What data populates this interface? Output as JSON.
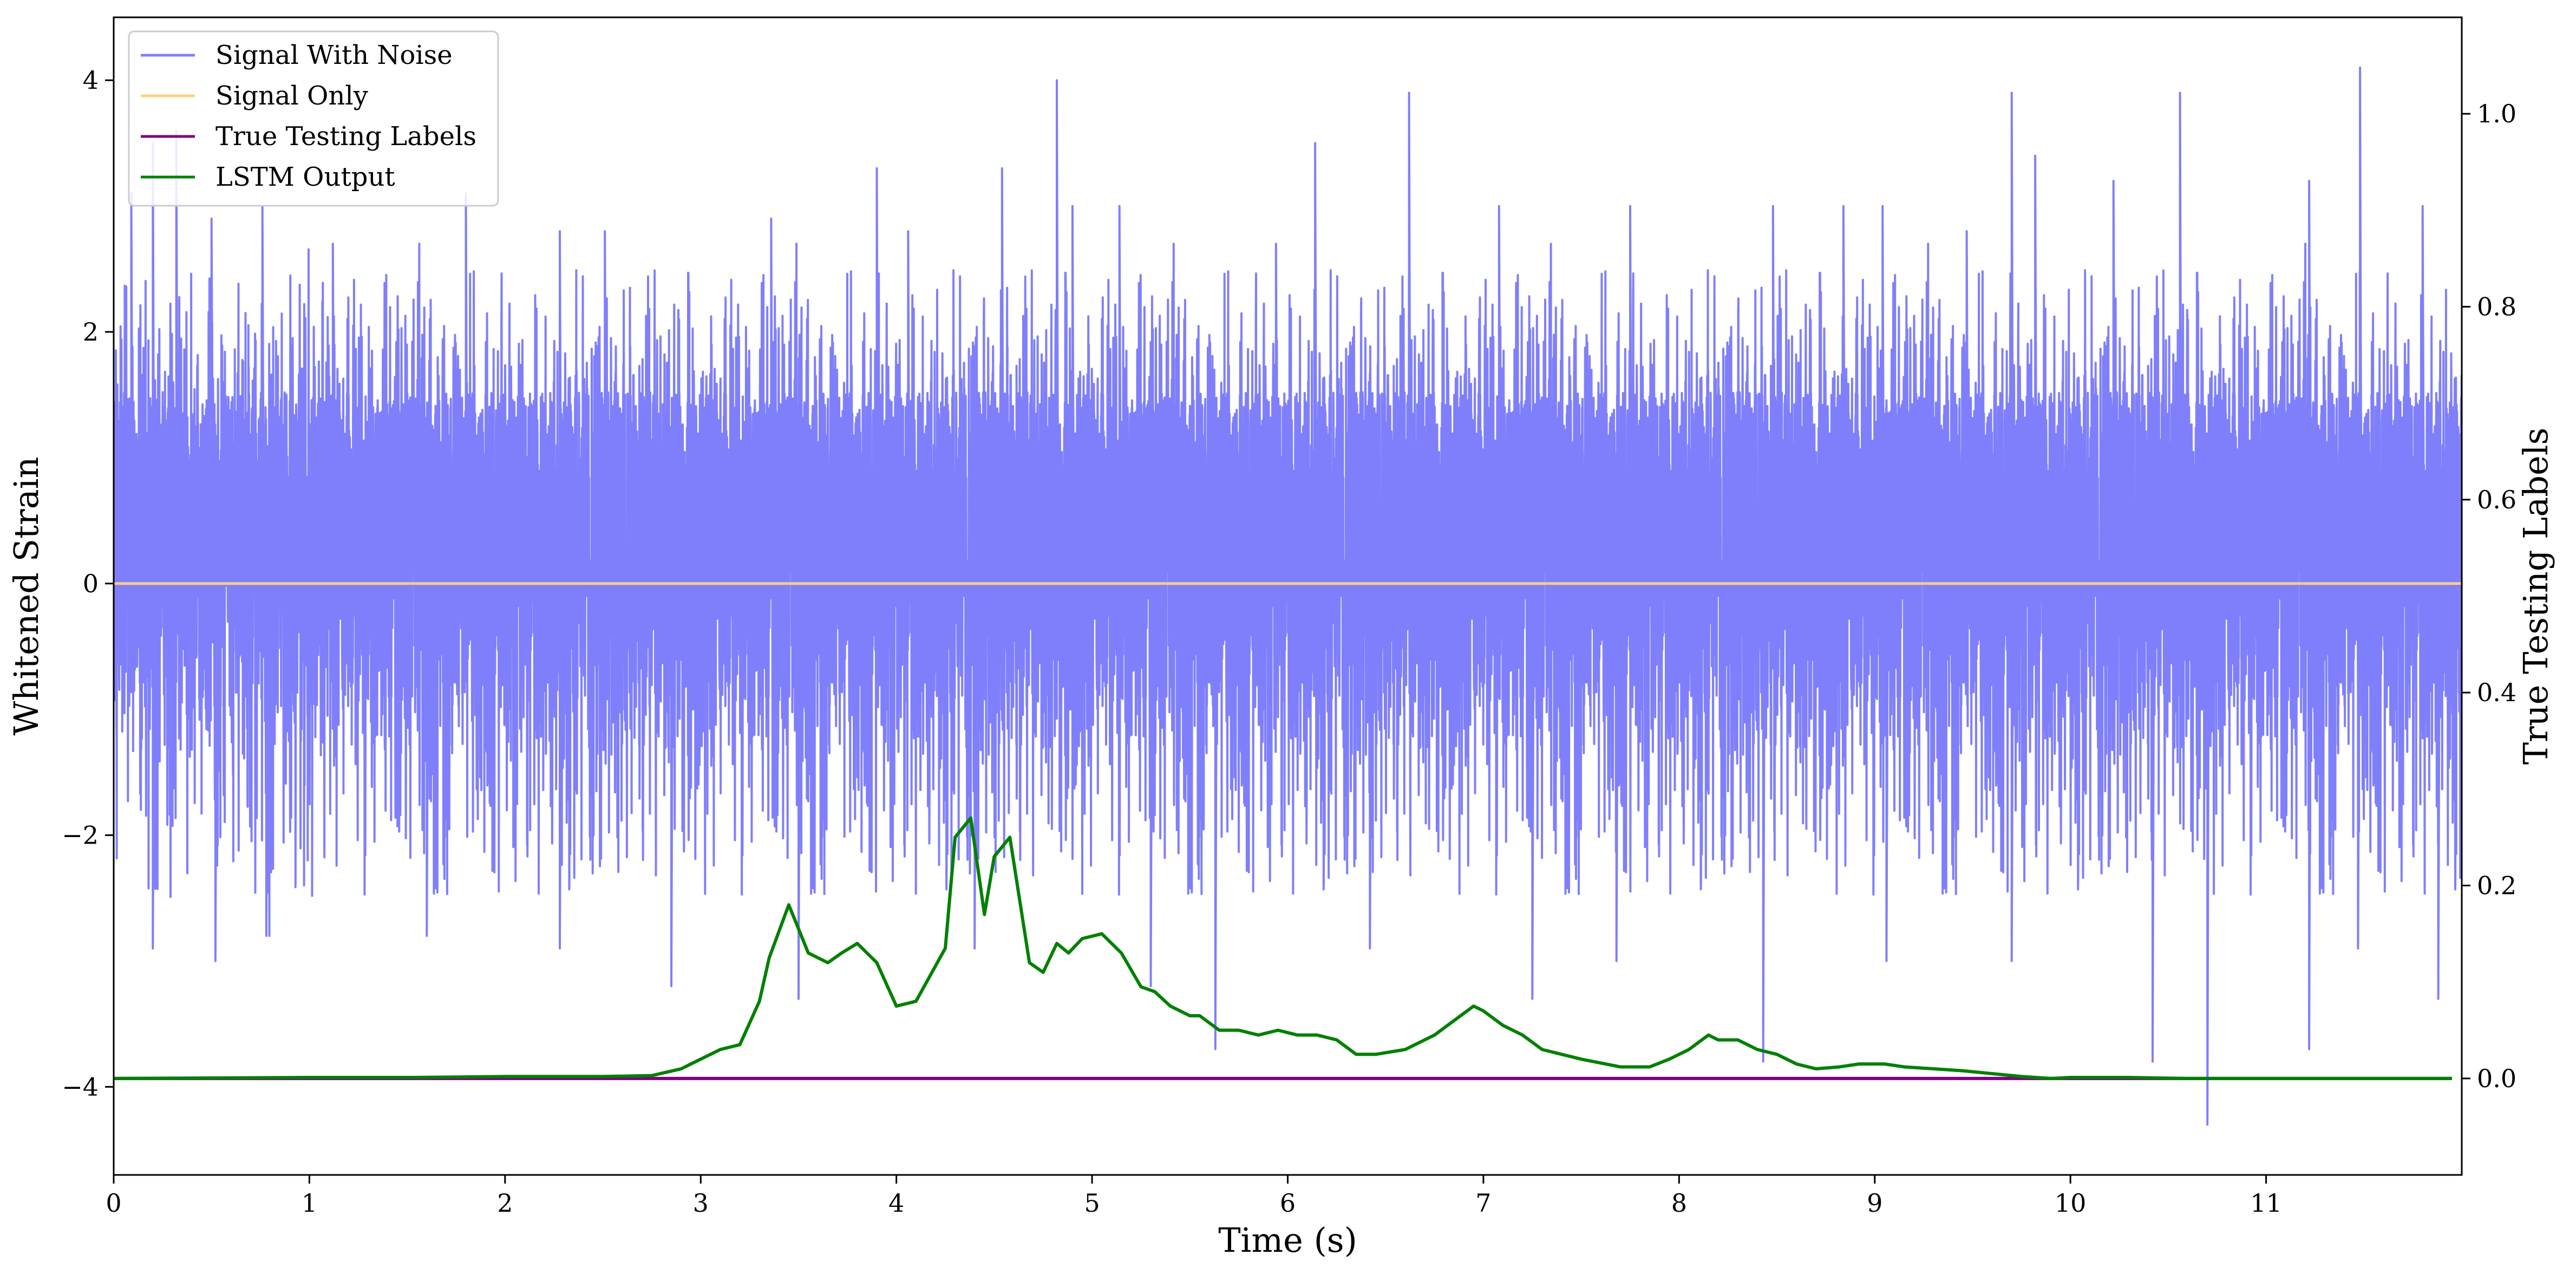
{
  "chart_data": {
    "type": "line",
    "xlabel": "Time (s)",
    "ylabel": "Whitened Strain",
    "y2label": "True Testing Labels",
    "xlim": [
      0,
      12
    ],
    "ylim": [
      -4.7,
      4.5
    ],
    "y2lim": [
      -0.1,
      1.1
    ],
    "xticks": [
      "0",
      "1",
      "2",
      "3",
      "4",
      "5",
      "6",
      "7",
      "8",
      "9",
      "10",
      "11"
    ],
    "yticks": [
      "−4",
      "−2",
      "0",
      "2",
      "4"
    ],
    "y2ticks": [
      "0.0",
      "0.2",
      "0.4",
      "0.6",
      "0.8",
      "1.0"
    ],
    "legend_position": "top-left",
    "colors": {
      "noise": "#7f7ffb",
      "signal": "#ffd27f",
      "labels": "#800080",
      "lstm": "#008000"
    },
    "series": [
      {
        "name": "Signal With Noise",
        "axis": "left",
        "description_kind": "dense noise",
        "band": [
          -1.2,
          1.3
        ],
        "peaks_high": [
          [
            0.09,
            3.1
          ],
          [
            0.2,
            3.5
          ],
          [
            0.32,
            3.6
          ],
          [
            0.5,
            2.9
          ],
          [
            0.76,
            3.0
          ],
          [
            1.12,
            2.7
          ],
          [
            1.8,
            3.1
          ],
          [
            2.28,
            2.8
          ],
          [
            2.51,
            2.8
          ],
          [
            3.36,
            2.9
          ],
          [
            3.9,
            3.3
          ],
          [
            4.06,
            2.8
          ],
          [
            4.54,
            3.3
          ],
          [
            4.82,
            4.0
          ],
          [
            4.9,
            3.0
          ],
          [
            5.14,
            3.0
          ],
          [
            5.94,
            2.7
          ],
          [
            6.14,
            3.5
          ],
          [
            6.62,
            3.9
          ],
          [
            7.08,
            3.0
          ],
          [
            7.75,
            3.0
          ],
          [
            8.48,
            3.0
          ],
          [
            8.84,
            3.0
          ],
          [
            9.04,
            3.0
          ],
          [
            9.47,
            2.8
          ],
          [
            9.7,
            3.9
          ],
          [
            9.82,
            3.4
          ],
          [
            10.22,
            3.2
          ],
          [
            10.56,
            3.9
          ],
          [
            11.22,
            3.2
          ],
          [
            11.48,
            4.1
          ],
          [
            11.8,
            3.0
          ]
        ],
        "peaks_low": [
          [
            0.2,
            -2.9
          ],
          [
            0.52,
            -3.0
          ],
          [
            0.78,
            -2.8
          ],
          [
            1.6,
            -2.8
          ],
          [
            2.28,
            -2.9
          ],
          [
            2.85,
            -3.2
          ],
          [
            3.5,
            -3.3
          ],
          [
            4.4,
            -2.9
          ],
          [
            5.3,
            -3.2
          ],
          [
            5.63,
            -3.7
          ],
          [
            6.42,
            -2.9
          ],
          [
            7.25,
            -3.3
          ],
          [
            7.68,
            -3.0
          ],
          [
            8.43,
            -3.8
          ],
          [
            9.06,
            -3.0
          ],
          [
            9.7,
            -3.0
          ],
          [
            10.42,
            -3.8
          ],
          [
            10.7,
            -4.3
          ],
          [
            11.22,
            -3.7
          ],
          [
            11.47,
            -2.9
          ],
          [
            11.88,
            -3.3
          ]
        ]
      },
      {
        "name": "Signal Only",
        "axis": "left",
        "x": [
          0,
          12
        ],
        "y": [
          0,
          0
        ]
      },
      {
        "name": "True Testing Labels",
        "axis": "right",
        "x": [
          0,
          11.95
        ],
        "y": [
          0.0,
          0.0
        ]
      },
      {
        "name": "LSTM Output",
        "axis": "right",
        "x": [
          0,
          1,
          1.5,
          2,
          2.5,
          2.75,
          2.9,
          3.0,
          3.1,
          3.2,
          3.3,
          3.35,
          3.45,
          3.55,
          3.65,
          3.72,
          3.8,
          3.9,
          4.0,
          4.1,
          4.25,
          4.3,
          4.38,
          4.45,
          4.5,
          4.58,
          4.68,
          4.75,
          4.82,
          4.88,
          4.95,
          5.05,
          5.15,
          5.25,
          5.32,
          5.4,
          5.5,
          5.55,
          5.65,
          5.75,
          5.85,
          5.95,
          6.05,
          6.15,
          6.25,
          6.35,
          6.45,
          6.6,
          6.75,
          6.85,
          6.95,
          7.0,
          7.1,
          7.2,
          7.3,
          7.5,
          7.7,
          7.85,
          7.95,
          8.05,
          8.15,
          8.2,
          8.3,
          8.4,
          8.5,
          8.6,
          8.7,
          8.82,
          8.92,
          9.05,
          9.15,
          9.3,
          9.45,
          9.6,
          9.75,
          9.9,
          10.0,
          10.3,
          10.6,
          11.0,
          11.5,
          11.95
        ],
        "y": [
          0.0,
          0.001,
          0.001,
          0.002,
          0.002,
          0.003,
          0.01,
          0.02,
          0.03,
          0.035,
          0.08,
          0.125,
          0.18,
          0.13,
          0.12,
          0.13,
          0.14,
          0.12,
          0.075,
          0.08,
          0.135,
          0.25,
          0.27,
          0.17,
          0.23,
          0.25,
          0.12,
          0.11,
          0.14,
          0.13,
          0.145,
          0.15,
          0.13,
          0.095,
          0.09,
          0.075,
          0.065,
          0.065,
          0.05,
          0.05,
          0.045,
          0.05,
          0.045,
          0.045,
          0.04,
          0.025,
          0.025,
          0.03,
          0.045,
          0.06,
          0.075,
          0.07,
          0.055,
          0.045,
          0.03,
          0.02,
          0.012,
          0.012,
          0.02,
          0.03,
          0.045,
          0.04,
          0.04,
          0.03,
          0.025,
          0.015,
          0.01,
          0.012,
          0.015,
          0.015,
          0.012,
          0.01,
          0.008,
          0.005,
          0.002,
          0.0,
          0.001,
          0.001,
          0.0,
          0.0,
          0.0,
          0.0
        ]
      }
    ]
  }
}
